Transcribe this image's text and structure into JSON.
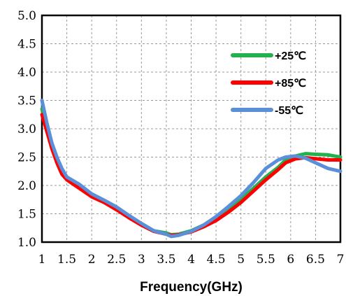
{
  "chart_data": {
    "type": "line",
    "title": "",
    "xlabel": "Frequency(GHz)",
    "ylabel": "",
    "xlim": [
      1,
      7
    ],
    "ylim": [
      1.0,
      5.0
    ],
    "grid": true,
    "legend_position": "top-right",
    "x_ticks": [
      "1",
      "1.5",
      "2",
      "2.5",
      "3",
      "3.5",
      "4",
      "4.5",
      "5",
      "5.5",
      "6",
      "6.5",
      "7"
    ],
    "y_ticks": [
      "1.0",
      "1.5",
      "2.0",
      "2.5",
      "3.0",
      "3.5",
      "4.0",
      "4.5",
      "5.0"
    ],
    "series": [
      {
        "name": "+25℃",
        "color": "#22b14c",
        "x": [
          1.0,
          1.1,
          1.2,
          1.3,
          1.4,
          1.5,
          1.75,
          2.0,
          2.25,
          2.5,
          2.75,
          3.0,
          3.25,
          3.5,
          3.6,
          3.75,
          4.0,
          4.25,
          4.5,
          4.75,
          5.0,
          5.25,
          5.5,
          5.75,
          5.9,
          6.1,
          6.3,
          6.5,
          6.75,
          7.0
        ],
        "y": [
          3.35,
          3.0,
          2.7,
          2.45,
          2.25,
          2.12,
          1.98,
          1.82,
          1.72,
          1.6,
          1.45,
          1.32,
          1.2,
          1.16,
          1.13,
          1.14,
          1.2,
          1.3,
          1.42,
          1.58,
          1.75,
          1.95,
          2.15,
          2.32,
          2.45,
          2.52,
          2.56,
          2.55,
          2.54,
          2.5
        ]
      },
      {
        "name": "+85℃",
        "color": "#ff0000",
        "x": [
          1.0,
          1.1,
          1.2,
          1.3,
          1.4,
          1.5,
          1.75,
          2.0,
          2.25,
          2.5,
          2.75,
          3.0,
          3.25,
          3.5,
          3.6,
          3.75,
          4.0,
          4.25,
          4.5,
          4.75,
          5.0,
          5.25,
          5.5,
          5.75,
          5.9,
          6.1,
          6.3,
          6.5,
          6.75,
          7.0
        ],
        "y": [
          3.25,
          2.95,
          2.65,
          2.4,
          2.2,
          2.1,
          1.95,
          1.8,
          1.7,
          1.57,
          1.43,
          1.3,
          1.19,
          1.14,
          1.12,
          1.13,
          1.18,
          1.27,
          1.38,
          1.53,
          1.7,
          1.9,
          2.1,
          2.28,
          2.4,
          2.47,
          2.49,
          2.47,
          2.45,
          2.45
        ]
      },
      {
        "name": "-55℃",
        "color": "#5b8fd8",
        "x": [
          1.0,
          1.1,
          1.2,
          1.3,
          1.4,
          1.5,
          1.75,
          2.0,
          2.25,
          2.5,
          2.75,
          3.0,
          3.25,
          3.5,
          3.6,
          3.75,
          4.0,
          4.25,
          4.5,
          4.75,
          5.0,
          5.25,
          5.5,
          5.75,
          5.9,
          6.1,
          6.3,
          6.5,
          6.75,
          7.0
        ],
        "y": [
          3.5,
          3.1,
          2.75,
          2.5,
          2.3,
          2.15,
          2.02,
          1.85,
          1.74,
          1.62,
          1.47,
          1.33,
          1.2,
          1.14,
          1.1,
          1.12,
          1.19,
          1.3,
          1.45,
          1.63,
          1.82,
          2.05,
          2.3,
          2.45,
          2.5,
          2.52,
          2.48,
          2.4,
          2.3,
          2.25
        ]
      }
    ]
  }
}
